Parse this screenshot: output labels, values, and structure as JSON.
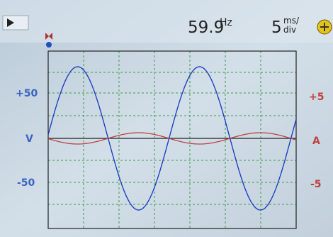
{
  "status_bar": {
    "frequency": "59.9",
    "frequency_unit": "Hz",
    "timebase": "5",
    "timebase_unit_top": "ms/",
    "timebase_unit_bottom": "div"
  },
  "left_axis": {
    "labels": [
      "+50",
      "V",
      "-50"
    ]
  },
  "right_axis": {
    "labels": [
      "+5",
      "A",
      "-5"
    ]
  }
}
